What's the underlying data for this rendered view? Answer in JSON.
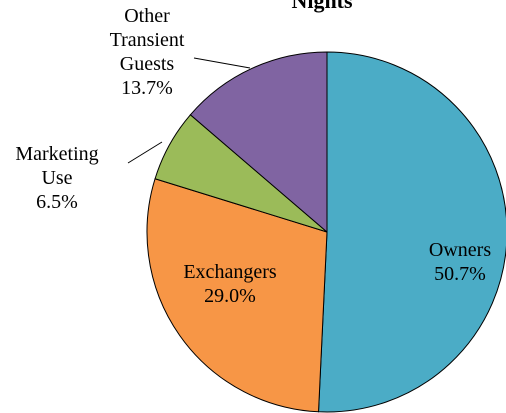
{
  "chart_data": {
    "type": "pie",
    "title": "Nights",
    "categories": [
      "Owners",
      "Exchangers",
      "Marketing Use",
      "Other Transient Guests"
    ],
    "values": [
      50.7,
      29.0,
      6.5,
      13.7
    ],
    "value_labels": [
      "50.7%",
      "29.0%",
      "6.5%",
      "13.7%"
    ],
    "colors": [
      "#4bacc6",
      "#f79646",
      "#9bbb59",
      "#8064a2"
    ]
  }
}
